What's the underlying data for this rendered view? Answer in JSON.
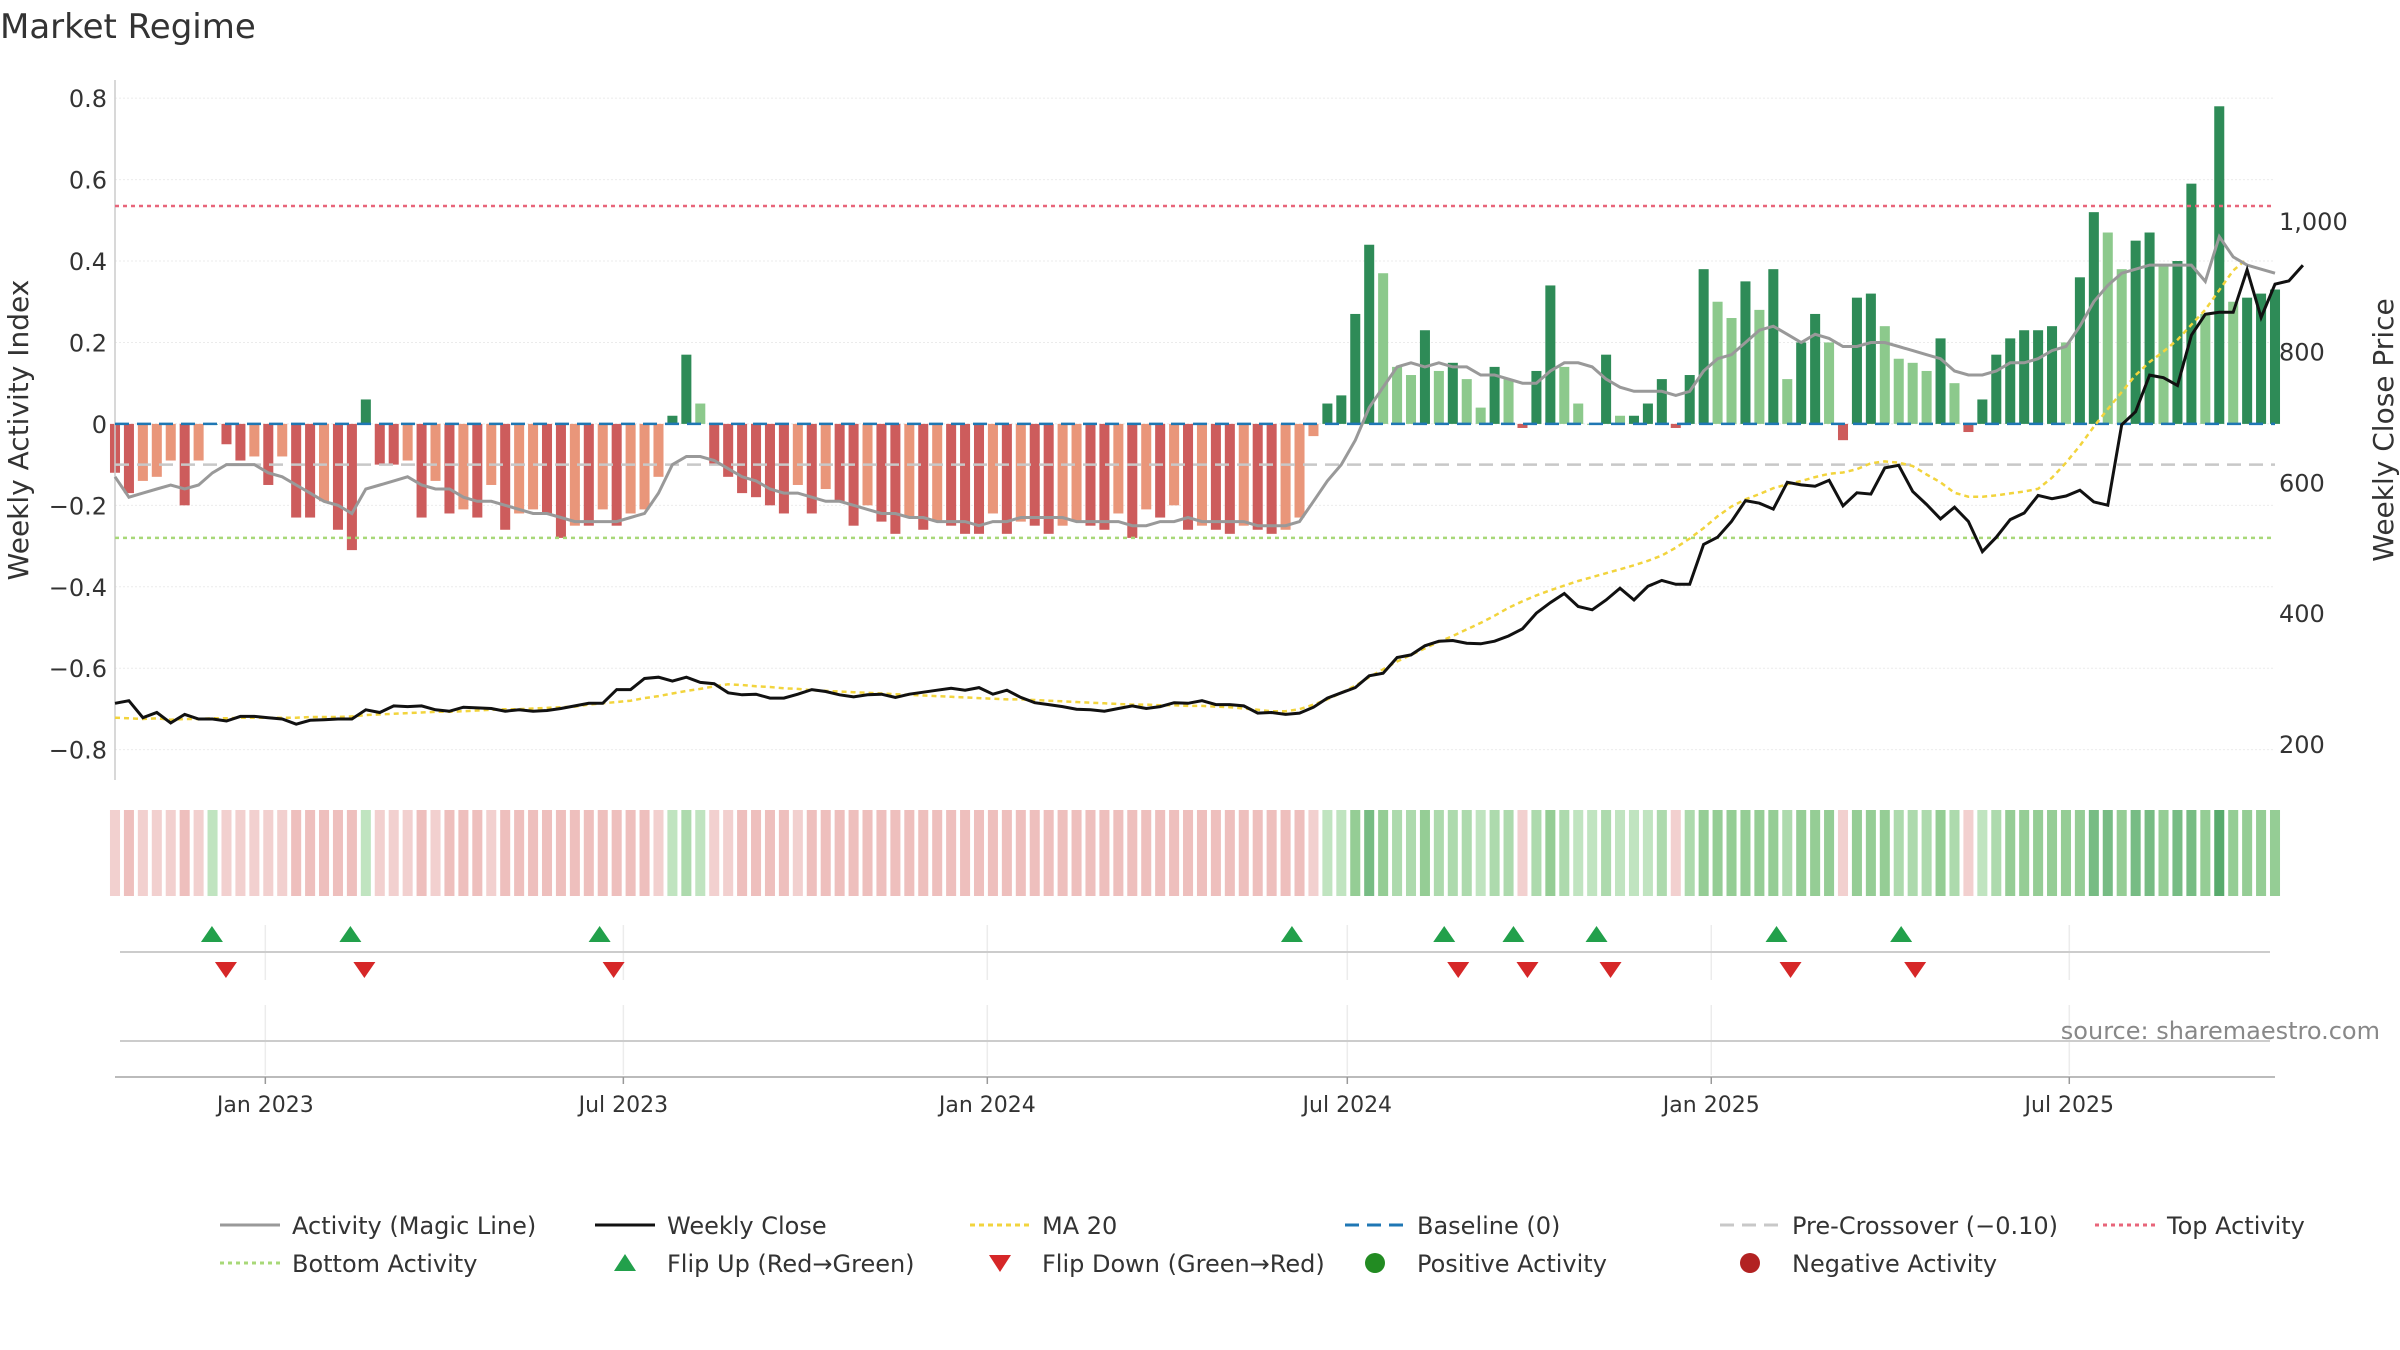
{
  "chart_data": {
    "type": "bar",
    "title": "Market Regime",
    "ylabel": "Weekly Activity Index",
    "ylabel_right": "Weekly Close Price",
    "source": "source: sharemaestro.com",
    "ylim": [
      -0.85,
      0.82
    ],
    "yticks": [
      0.8,
      0.6,
      0.4,
      0.2,
      0,
      -0.2,
      -0.4,
      -0.6,
      -0.8
    ],
    "ytick_labels": [
      "0.8",
      "0.6",
      "0.4",
      "0.2",
      "0",
      "−0.2",
      "−0.4",
      "−0.6",
      "−0.8"
    ],
    "price_lim": [
      160,
      1200
    ],
    "price_ticks": [
      200,
      400,
      600,
      800,
      1000
    ],
    "price_tick_labels": [
      "200",
      "400",
      "600",
      "800",
      "1,000"
    ],
    "x_start": "2022-10-17",
    "x_end": "2025-10-13",
    "xticks": [
      "2023-01-01",
      "2023-07-01",
      "2024-01-01",
      "2024-07-01",
      "2025-01-01",
      "2025-07-01"
    ],
    "xtick_labels": [
      "Jan 2023",
      "Jul 2023",
      "Jan 2024",
      "Jul 2024",
      "Jan 2025",
      "Jul 2025"
    ],
    "reference_lines": {
      "baseline": 0,
      "pre_crossover": -0.1,
      "top_activity": 0.535,
      "bottom_activity": -0.28
    },
    "legend": [
      "Activity (Magic Line)",
      "Weekly Close",
      "MA 20",
      "Baseline (0)",
      "Pre-Crossover (−0.10)",
      "Top Activity",
      "Bottom Activity",
      "Flip Up (Red→Green)",
      "Flip Down (Green→Red)",
      "Positive Activity",
      "Negative Activity"
    ],
    "legend_placement": "bottom",
    "grid": true,
    "colors": {
      "pos_strong": "#2e8b57",
      "pos_light": "#8cc98c",
      "neg_strong": "#cd5c5c",
      "neg_light": "#e9967a",
      "magic_line": "#999999",
      "close": "#111111",
      "ma20": "#f2d43d",
      "baseline": "#1f77b4",
      "pre_crossover": "#c8c8c8",
      "top_activity": "#e8657a",
      "bottom_activity": "#a8d878",
      "flip_up": "#22a04b",
      "flip_down": "#d62728",
      "pos_dot": "#228b22",
      "neg_dot": "#b22222"
    },
    "activity": [
      -0.12,
      -0.17,
      -0.14,
      -0.13,
      -0.09,
      -0.2,
      -0.09,
      0,
      -0.05,
      -0.09,
      -0.08,
      -0.15,
      -0.08,
      -0.23,
      -0.23,
      -0.19,
      -0.26,
      -0.31,
      0.06,
      -0.1,
      -0.1,
      -0.09,
      -0.23,
      -0.14,
      -0.22,
      -0.21,
      -0.23,
      -0.15,
      -0.26,
      -0.22,
      -0.21,
      -0.22,
      -0.28,
      -0.25,
      -0.25,
      -0.21,
      -0.25,
      -0.22,
      -0.21,
      -0.13,
      0.02,
      0.17,
      0.05,
      -0.1,
      -0.13,
      -0.17,
      -0.18,
      -0.2,
      -0.22,
      -0.15,
      -0.22,
      -0.16,
      -0.19,
      -0.25,
      -0.2,
      -0.24,
      -0.27,
      -0.23,
      -0.26,
      -0.24,
      -0.25,
      -0.27,
      -0.27,
      -0.22,
      -0.27,
      -0.24,
      -0.25,
      -0.27,
      -0.25,
      -0.24,
      -0.25,
      -0.26,
      -0.22,
      -0.28,
      -0.21,
      -0.23,
      -0.2,
      -0.26,
      -0.25,
      -0.26,
      -0.27,
      -0.25,
      -0.26,
      -0.27,
      -0.26,
      -0.23,
      -0.03,
      0.05,
      0.07,
      0.27,
      0.44,
      0.37,
      0.14,
      0.12,
      0.23,
      0.13,
      0.15,
      0.11,
      0.04,
      0.14,
      0.11,
      -0.01,
      0.13,
      0.34,
      0.14,
      0.05,
      0,
      0.17,
      0.02,
      0.02,
      0.05,
      0.11,
      -0.01,
      0.12,
      0.38,
      0.3,
      0.26,
      0.35,
      0.28,
      0.38,
      0.11,
      0.2,
      0.27,
      0.2,
      -0.04,
      0.31,
      0.32,
      0.24,
      0.16,
      0.15,
      0.13,
      0.21,
      0.1,
      -0.02,
      0.06,
      0.17,
      0.21,
      0.23,
      0.23,
      0.24,
      0.2,
      0.36,
      0.52,
      0.47,
      0.38,
      0.45,
      0.47,
      0.39,
      0.4,
      0.59,
      0.27,
      0.78,
      0.3,
      0.31,
      0.32,
      0.33
    ],
    "magic_line": [
      -0.13,
      -0.18,
      -0.17,
      -0.16,
      -0.15,
      -0.16,
      -0.15,
      -0.12,
      -0.1,
      -0.1,
      -0.1,
      -0.12,
      -0.13,
      -0.15,
      -0.17,
      -0.19,
      -0.2,
      -0.22,
      -0.16,
      -0.15,
      -0.14,
      -0.13,
      -0.15,
      -0.16,
      -0.16,
      -0.18,
      -0.19,
      -0.19,
      -0.2,
      -0.21,
      -0.22,
      -0.22,
      -0.23,
      -0.24,
      -0.24,
      -0.24,
      -0.24,
      -0.23,
      -0.22,
      -0.17,
      -0.1,
      -0.08,
      -0.08,
      -0.09,
      -0.11,
      -0.13,
      -0.14,
      -0.16,
      -0.17,
      -0.17,
      -0.18,
      -0.19,
      -0.19,
      -0.2,
      -0.21,
      -0.22,
      -0.22,
      -0.23,
      -0.23,
      -0.24,
      -0.24,
      -0.24,
      -0.25,
      -0.24,
      -0.24,
      -0.23,
      -0.23,
      -0.23,
      -0.23,
      -0.24,
      -0.24,
      -0.24,
      -0.24,
      -0.25,
      -0.25,
      -0.24,
      -0.24,
      -0.23,
      -0.24,
      -0.24,
      -0.24,
      -0.24,
      -0.25,
      -0.25,
      -0.25,
      -0.24,
      -0.19,
      -0.14,
      -0.1,
      -0.04,
      0.04,
      0.09,
      0.14,
      0.15,
      0.14,
      0.15,
      0.14,
      0.14,
      0.12,
      0.12,
      0.11,
      0.1,
      0.1,
      0.13,
      0.15,
      0.15,
      0.14,
      0.11,
      0.09,
      0.08,
      0.08,
      0.08,
      0.07,
      0.08,
      0.13,
      0.16,
      0.17,
      0.2,
      0.23,
      0.24,
      0.22,
      0.2,
      0.22,
      0.21,
      0.19,
      0.19,
      0.2,
      0.2,
      0.19,
      0.18,
      0.17,
      0.16,
      0.13,
      0.12,
      0.12,
      0.13,
      0.15,
      0.15,
      0.16,
      0.18,
      0.19,
      0.24,
      0.3,
      0.34,
      0.37,
      0.38,
      0.39,
      0.39,
      0.39,
      0.39,
      0.35,
      0.46,
      0.41,
      0.39,
      0.38,
      0.37
    ],
    "weekly_close": [
      262,
      266,
      240,
      248,
      232,
      245,
      238,
      238,
      235,
      242,
      242,
      240,
      238,
      230,
      236,
      237,
      238,
      238,
      252,
      248,
      258,
      257,
      258,
      252,
      250,
      256,
      255,
      254,
      250,
      252,
      250,
      251,
      254,
      258,
      262,
      262,
      283,
      283,
      300,
      302,
      296,
      302,
      294,
      292,
      278,
      275,
      276,
      270,
      270,
      276,
      283,
      280,
      275,
      272,
      275,
      276,
      271,
      276,
      279,
      282,
      285,
      282,
      286,
      276,
      282,
      271,
      263,
      260,
      257,
      253,
      252,
      250,
      254,
      258,
      254,
      257,
      263,
      262,
      266,
      260,
      260,
      258,
      247,
      248,
      245,
      247,
      256,
      270,
      278,
      286,
      304,
      308,
      332,
      336,
      350,
      357,
      358,
      354,
      353,
      357,
      365,
      376,
      400,
      416,
      430,
      410,
      405,
      420,
      438,
      420,
      441,
      450,
      444,
      444,
      505,
      516,
      540,
      572,
      568,
      559,
      600,
      596,
      594,
      603,
      564,
      584,
      582,
      622,
      626,
      586,
      566,
      544,
      562,
      540,
      494,
      516,
      543,
      553,
      580,
      575,
      579,
      588,
      570,
      565,
      688,
      708,
      764,
      760,
      748,
      825,
      857,
      860,
      860,
      925,
      852,
      903,
      908,
      932
    ],
    "ma20": [
      240,
      239,
      238,
      239,
      237,
      238,
      238,
      239,
      239,
      240,
      240,
      240,
      240,
      240,
      241,
      241,
      241,
      242,
      244,
      245,
      246,
      247,
      248,
      249,
      249,
      250,
      251,
      252,
      253,
      253,
      254,
      255,
      256,
      257,
      260,
      262,
      264,
      266,
      270,
      273,
      277,
      281,
      284,
      288,
      291,
      290,
      288,
      287,
      285,
      284,
      282,
      281,
      280,
      279,
      278,
      277,
      276,
      275,
      274,
      273,
      272,
      271,
      270,
      269,
      268,
      268,
      267,
      266,
      265,
      264,
      263,
      262,
      261,
      260,
      260,
      259,
      259,
      258,
      258,
      257,
      256,
      254,
      252,
      250,
      250,
      253,
      260,
      268,
      278,
      289,
      302,
      314,
      326,
      336,
      346,
      356,
      365,
      375,
      385,
      396,
      408,
      418,
      427,
      435,
      442,
      449,
      455,
      461,
      467,
      473,
      480,
      488,
      500,
      514,
      530,
      548,
      563,
      574,
      582,
      591,
      597,
      602,
      608,
      613,
      615,
      620,
      629,
      632,
      630,
      625,
      612,
      600,
      584,
      578,
      578,
      580,
      583,
      586,
      590,
      607,
      630,
      656,
      685,
      712,
      738,
      764,
      784,
      800,
      818,
      841,
      864,
      894,
      924,
      942
    ],
    "flips_up": [
      "2022-12-05",
      "2023-02-13",
      "2023-06-19",
      "2024-06-03",
      "2024-08-19",
      "2024-09-23",
      "2024-11-04",
      "2025-02-03",
      "2025-04-07"
    ],
    "flips_down": [
      "2022-12-05",
      "2023-02-13",
      "2023-06-19",
      "2024-08-19",
      "2024-09-23",
      "2024-11-04",
      "2025-02-03",
      "2025-04-07"
    ]
  }
}
